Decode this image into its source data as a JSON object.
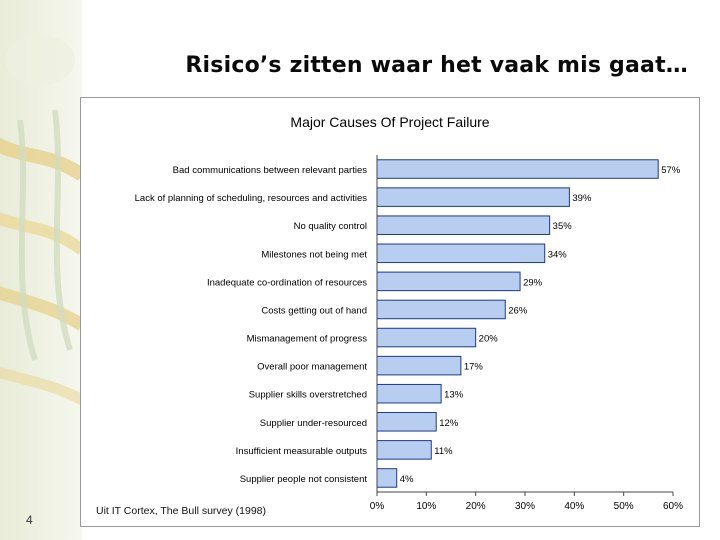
{
  "slide": {
    "title": "Risico’s zitten waar het vaak mis gaat…",
    "page_number": "4",
    "source": "Uit IT Cortex, The Bull survey (1998)"
  },
  "colors": {
    "bar_fill": "#b8cef0",
    "bar_stroke": "#1a3a8a",
    "title_text": "#0a0a0a"
  },
  "chart_data": {
    "type": "bar",
    "orientation": "horizontal",
    "title": "Major Causes Of Project Failure",
    "categories": [
      "Bad communications between relevant parties",
      "Lack of planning of scheduling, resources and activities",
      "No quality control",
      "Milestones not being met",
      "Inadequate co-ordination of resources",
      "Costs getting out of hand",
      "Mismanagement of progress",
      "Overall poor management",
      "Supplier skills overstretched",
      "Supplier under-resourced",
      "Insufficient measurable outputs",
      "Supplier people not consistent"
    ],
    "values": [
      57,
      39,
      35,
      34,
      29,
      26,
      20,
      17,
      13,
      12,
      11,
      4
    ],
    "data_labels": [
      "57%",
      "39%",
      "35%",
      "34%",
      "29%",
      "26%",
      "20%",
      "17%",
      "13%",
      "12%",
      "11%",
      "4%"
    ],
    "xlim": [
      0,
      60
    ],
    "x_ticks": [
      0,
      10,
      20,
      30,
      40,
      50,
      60
    ],
    "x_tick_labels": [
      "0%",
      "10%",
      "20%",
      "30%",
      "40%",
      "50%",
      "60%"
    ],
    "grid": false,
    "legend": "none"
  }
}
